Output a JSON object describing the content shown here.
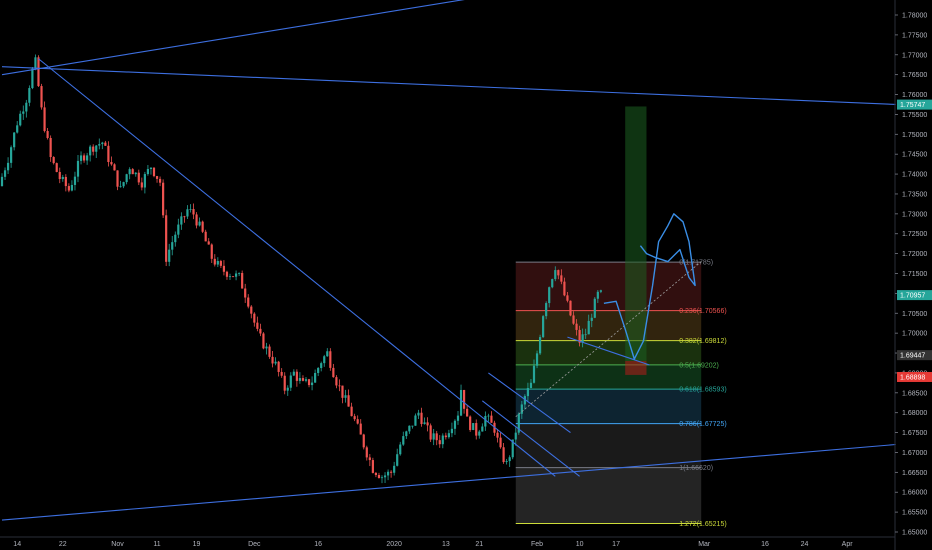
{
  "chart_data": {
    "type": "candlestick",
    "colors": {
      "background": "#000000",
      "up": "#26a69a",
      "down": "#ef5350",
      "trendline": "#3d6fe0",
      "projection": "#3a8ee6",
      "grid": "#0d0d0d",
      "axis_text": "#b2b5be"
    },
    "y_axis": {
      "position": "right",
      "ylim": [
        1.645,
        1.785
      ],
      "ticks": [
        "1.78000",
        "1.77500",
        "1.77000",
        "1.76500",
        "1.76000",
        "1.75500",
        "1.75000",
        "1.74500",
        "1.74000",
        "1.73500",
        "1.73000",
        "1.72500",
        "1.72000",
        "1.71500",
        "1.71000",
        "1.70500",
        "1.70000",
        "1.69500",
        "1.69000",
        "1.68500",
        "1.68000",
        "1.67500",
        "1.67000",
        "1.66500",
        "1.66000",
        "1.65500",
        "1.65000"
      ],
      "price_badges": [
        {
          "label": "1.75747",
          "value": 1.75747,
          "color": "#26a69a"
        },
        {
          "label": "1.70957",
          "value": 1.70957,
          "color": "#26a69a"
        },
        {
          "label": "1.69447",
          "value": 1.69447,
          "color": "#333333"
        },
        {
          "label": "1.68898",
          "value": 1.68898,
          "color": "#e53935"
        }
      ]
    },
    "x_axis": {
      "ticks": [
        {
          "label": "14",
          "bar": 5
        },
        {
          "label": "22",
          "bar": 20
        },
        {
          "label": "Nov",
          "bar": 38
        },
        {
          "label": "11",
          "bar": 51
        },
        {
          "label": "19",
          "bar": 64
        },
        {
          "label": "Dec",
          "bar": 83
        },
        {
          "label": "16",
          "bar": 104
        },
        {
          "label": "2020",
          "bar": 129
        },
        {
          "label": "13",
          "bar": 146
        },
        {
          "label": "21",
          "bar": 157
        },
        {
          "label": "Feb",
          "bar": 176
        },
        {
          "label": "10",
          "bar": 190
        },
        {
          "label": "17",
          "bar": 202
        },
        {
          "label": "Mar",
          "bar": 231
        },
        {
          "label": "16",
          "bar": 251
        },
        {
          "label": "24",
          "bar": 264
        },
        {
          "label": "Apr",
          "bar": 278
        }
      ]
    },
    "price_path": [
      [
        0,
        1.737
      ],
      [
        3,
        1.744
      ],
      [
        6,
        1.753
      ],
      [
        9,
        1.759
      ],
      [
        11,
        1.766
      ],
      [
        12,
        1.768
      ],
      [
        14,
        1.756
      ],
      [
        17,
        1.744
      ],
      [
        20,
        1.739
      ],
      [
        23,
        1.736
      ],
      [
        27,
        1.744
      ],
      [
        31,
        1.747
      ],
      [
        34,
        1.748
      ],
      [
        37,
        1.742
      ],
      [
        40,
        1.736
      ],
      [
        43,
        1.742
      ],
      [
        47,
        1.738
      ],
      [
        50,
        1.742
      ],
      [
        53,
        1.738
      ],
      [
        55,
        1.719
      ],
      [
        58,
        1.725
      ],
      [
        62,
        1.731
      ],
      [
        64,
        1.73
      ],
      [
        67,
        1.725
      ],
      [
        70,
        1.719
      ],
      [
        73,
        1.716
      ],
      [
        76,
        1.715
      ],
      [
        79,
        1.714
      ],
      [
        82,
        1.708
      ],
      [
        85,
        1.7
      ],
      [
        88,
        1.696
      ],
      [
        91,
        1.692
      ],
      [
        94,
        1.686
      ],
      [
        97,
        1.69
      ],
      [
        100,
        1.687
      ],
      [
        103,
        1.688
      ],
      [
        106,
        1.693
      ],
      [
        108,
        1.695
      ],
      [
        111,
        1.688
      ],
      [
        114,
        1.683
      ],
      [
        117,
        1.678
      ],
      [
        120,
        1.672
      ],
      [
        123,
        1.666
      ],
      [
        126,
        1.664
      ],
      [
        129,
        1.665
      ],
      [
        132,
        1.672
      ],
      [
        135,
        1.676
      ],
      [
        138,
        1.68
      ],
      [
        140,
        1.677
      ],
      [
        142,
        1.674
      ],
      [
        145,
        1.673
      ],
      [
        148,
        1.676
      ],
      [
        151,
        1.68
      ],
      [
        152,
        1.686
      ],
      [
        154,
        1.678
      ],
      [
        157,
        1.675
      ],
      [
        160,
        1.679
      ],
      [
        163,
        1.676
      ],
      [
        165,
        1.67
      ],
      [
        167,
        1.667
      ],
      [
        169,
        1.672
      ],
      [
        171,
        1.679
      ],
      [
        173,
        1.684
      ],
      [
        175,
        1.687
      ],
      [
        177,
        1.695
      ],
      [
        179,
        1.705
      ],
      [
        181,
        1.712
      ],
      [
        183,
        1.717
      ],
      [
        185,
        1.712
      ],
      [
        187,
        1.707
      ],
      [
        189,
        1.702
      ],
      [
        191,
        1.698
      ],
      [
        193,
        1.7
      ],
      [
        195,
        1.705
      ],
      [
        197,
        1.7096
      ]
    ],
    "fibonacci": {
      "x_range_bars": [
        169,
        230
      ],
      "levels": [
        {
          "label": "0(1.71785)",
          "value": 1.71785,
          "color": "#787b86",
          "fill": "#3a1212"
        },
        {
          "label": "0.236(1.70566)",
          "value": 1.70566,
          "color": "#ef5350",
          "fill": "#3a2a10"
        },
        {
          "label": "0.382(1.69812)",
          "value": 1.69812,
          "color": "#cddc39",
          "fill": "#1f3a10"
        },
        {
          "label": "0.5(1.69202)",
          "value": 1.69202,
          "color": "#4caf50",
          "fill": "#0f3a1a"
        },
        {
          "label": "0.618(1.68593)",
          "value": 1.68593,
          "color": "#26a69a",
          "fill": "#0f2a3a"
        },
        {
          "label": "0.786(1.67725)",
          "value": 1.67725,
          "color": "#42a5f5",
          "fill": "#1f1f1f"
        },
        {
          "label": "1(1.66620)",
          "value": 1.6662,
          "color": "#787b86",
          "fill": "#2a2a2a"
        },
        {
          "label": "1.272(1.65215)",
          "value": 1.65215,
          "color": "#cddc39",
          "fill": null
        }
      ]
    },
    "trendlines": [
      {
        "from": [
          0,
          1.767
        ],
        "to": [
          294,
          1.7575
        ]
      },
      {
        "from": [
          0,
          1.765
        ],
        "to": [
          161,
          1.785
        ]
      },
      {
        "from": [
          12,
          1.769
        ],
        "to": [
          182,
          1.664
        ]
      },
      {
        "from": [
          0,
          1.653
        ],
        "to": [
          294,
          1.672
        ]
      },
      {
        "from": [
          160,
          1.69
        ],
        "to": [
          187,
          1.675
        ]
      },
      {
        "from": [
          158,
          1.683
        ],
        "to": [
          190,
          1.664
        ]
      },
      {
        "from": [
          186,
          1.699
        ],
        "to": [
          213,
          1.692
        ]
      }
    ],
    "measure_boxes": [
      {
        "x0": 205,
        "x1": 212,
        "y0": 1.693,
        "y1": 1.757,
        "color": "#1b5e20"
      },
      {
        "x0": 205,
        "x1": 212,
        "y0": 1.6895,
        "y1": 1.693,
        "color": "#b71c1c"
      }
    ],
    "projection_path": [
      [
        198,
        1.7075
      ],
      [
        202,
        1.708
      ],
      [
        205,
        1.701
      ],
      [
        208,
        1.6935
      ],
      [
        211,
        1.698
      ],
      [
        214,
        1.712
      ],
      [
        216,
        1.723
      ],
      [
        219,
        1.727
      ],
      [
        221,
        1.73
      ],
      [
        224,
        1.728
      ],
      [
        226,
        1.723
      ],
      [
        228,
        1.712
      ],
      [
        226,
        1.714
      ],
      [
        223,
        1.721
      ],
      [
        219,
        1.718
      ],
      [
        215,
        1.719
      ],
      [
        212,
        1.72
      ],
      [
        210,
        1.722
      ]
    ],
    "dashed_projection": {
      "from": [
        169,
        1.679
      ],
      "to": [
        230,
        1.718
      ]
    }
  }
}
